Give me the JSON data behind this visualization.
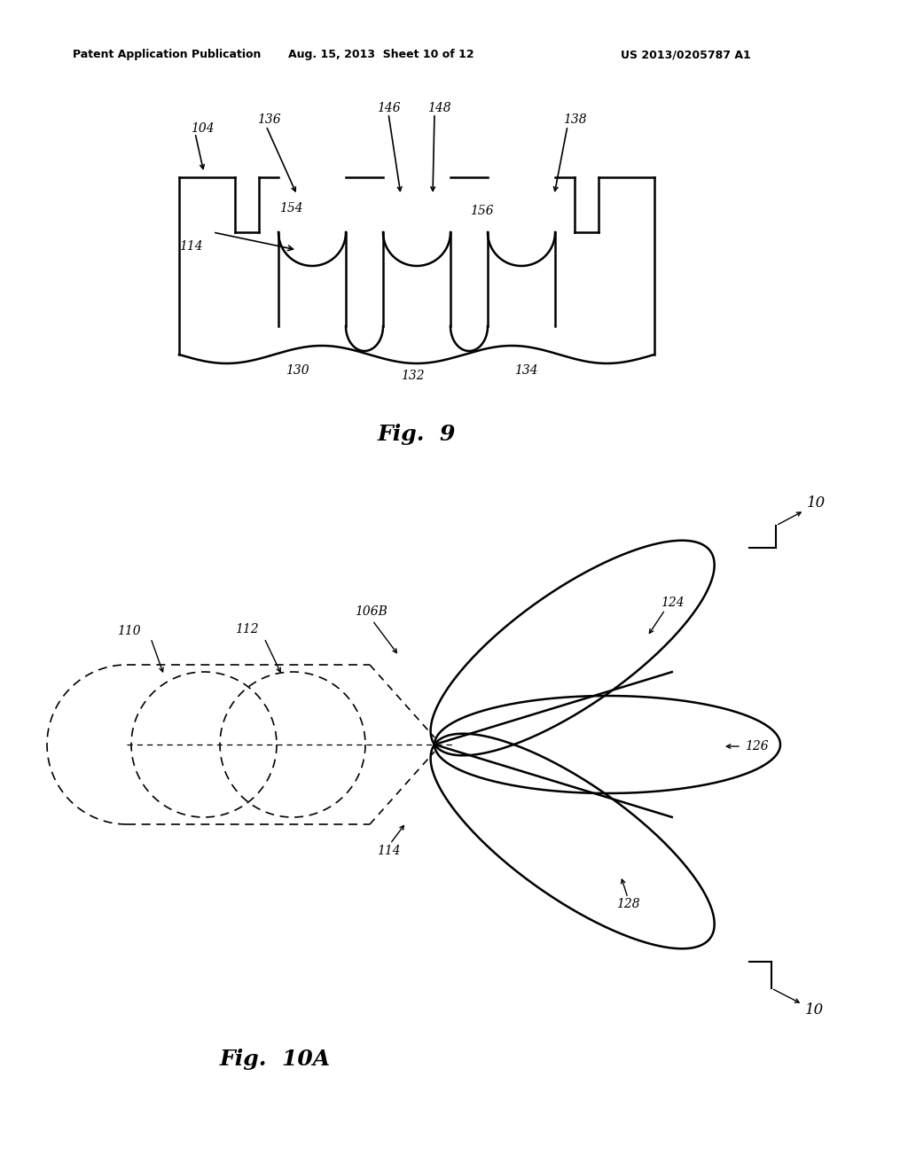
{
  "bg_color": "#ffffff",
  "header_left": "Patent Application Publication",
  "header_mid": "Aug. 15, 2013  Sheet 10 of 12",
  "header_right": "US 2013/0205787 A1",
  "fig9_caption": "Fig.  9",
  "fig10a_caption": "Fig.  10A",
  "lc": "#000000",
  "lw_main": 1.8,
  "lw_thin": 1.2,
  "label_fs": 10,
  "caption_fs": 18,
  "header_fs": 9
}
